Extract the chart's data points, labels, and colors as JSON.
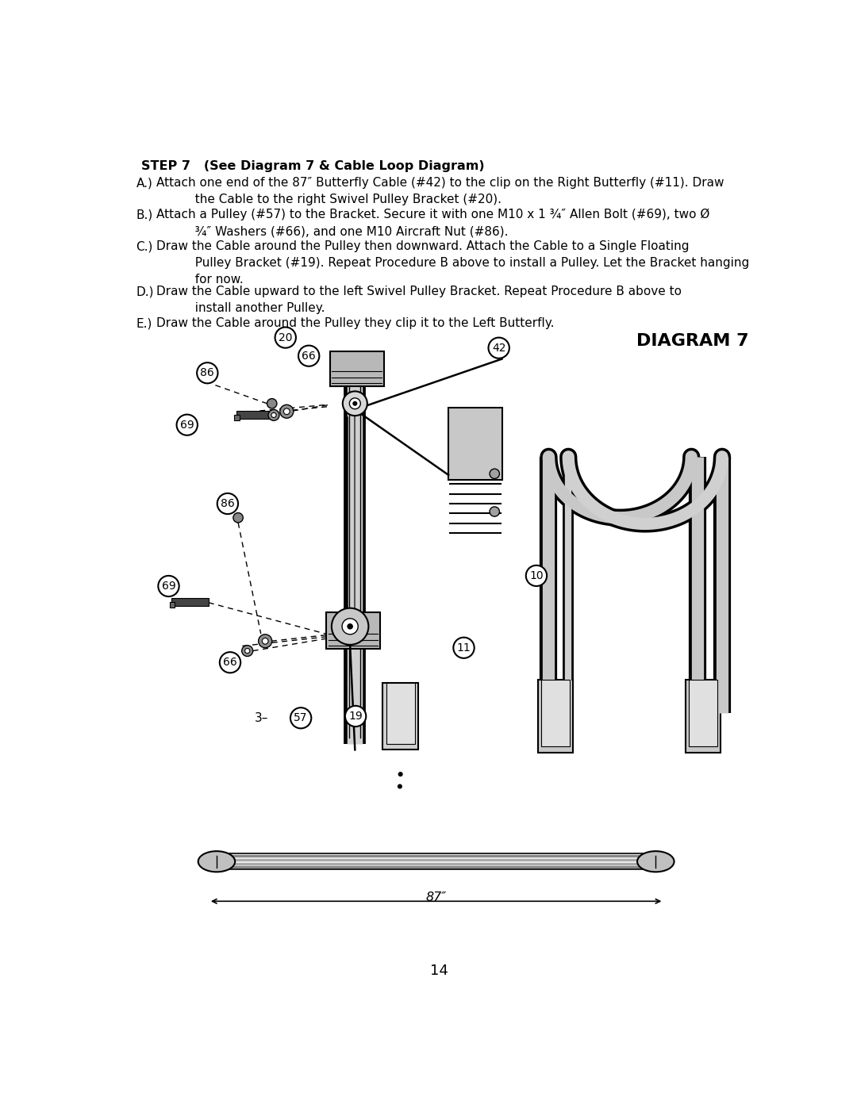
{
  "page_bg": "#ffffff",
  "title": "STEP 7   (See Diagram 7 & Cable Loop Diagram)",
  "instructions": [
    [
      "A.)",
      "Attach one end of the 87″ Butterfly Cable (#42) to the clip on the Right Butterfly (#11). Draw\n          the Cable to the right Swivel Pulley Bracket (#20)."
    ],
    [
      "B.)",
      "Attach a Pulley (#57) to the Bracket. Secure it with one M10 x 1 ¾″ Allen Bolt (#69), two Ø\n          ¾″ Washers (#66), and one M10 Aircraft Nut (#86)."
    ],
    [
      "C.)",
      "Draw the Cable around the Pulley then downward. Attach the Cable to a Single Floating\n          Pulley Bracket (#19). Repeat Procedure B above to install a Pulley. Let the Bracket hanging\n          for now."
    ],
    [
      "D.)",
      "Draw the Cable upward to the left Swivel Pulley Bracket. Repeat Procedure B above to\n          install another Pulley."
    ],
    [
      "E.)",
      "Draw the Cable around the Pulley they clip it to the Left Butterfly."
    ]
  ],
  "diagram_label": "DIAGRAM 7",
  "page_number": "14",
  "text_color": "#000000"
}
